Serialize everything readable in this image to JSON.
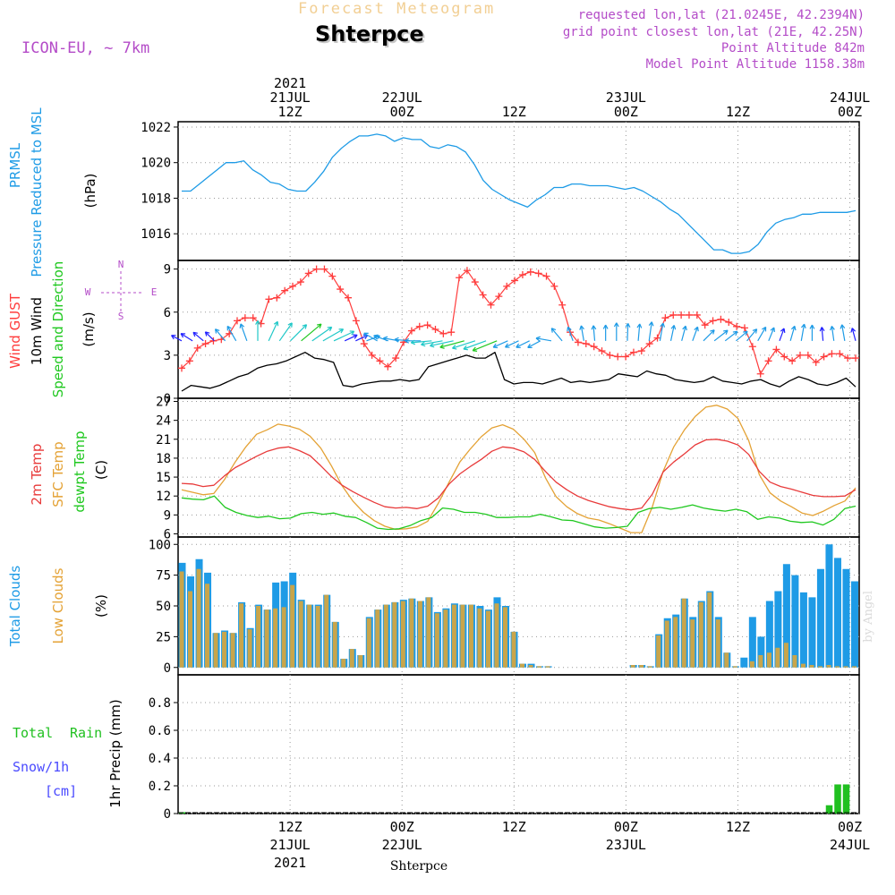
{
  "header": {
    "title": "Forecast Meteogram",
    "station": "Shterpce",
    "model": "ICON-EU, ~ 7km",
    "requested": "requested lon,lat (21.0245E, 42.2394N)",
    "grid_point": "grid point closest lon,lat (21E, 42.25N)",
    "point_altitude": "Point Altitude 842m",
    "model_altitude": "Model Point Altitude 1158.38m"
  },
  "credit": "by Angel",
  "colors": {
    "pressure": "#1e9be6",
    "gust": "#ff3c3c",
    "wind": "#000000",
    "temp2m": "#e83a3a",
    "sfc": "#e4a235",
    "dewpt": "#20c820",
    "total_cloud": "#1e9be6",
    "low_cloud": "#c8a54b",
    "rain": "#20c020",
    "snow": "#4a4aff",
    "label_pressure": "#1e9be6",
    "label_purple": "#b44cc8"
  },
  "time_axis": {
    "start_hour": 0,
    "end_hour": 73,
    "top_labels": [
      {
        "h": 12,
        "lines": [
          "2021",
          "21JUL",
          "12Z"
        ]
      },
      {
        "h": 24,
        "lines": [
          "22JUL",
          "00Z"
        ]
      },
      {
        "h": 36,
        "lines": [
          "12Z"
        ]
      },
      {
        "h": 48,
        "lines": [
          "23JUL",
          "00Z"
        ]
      },
      {
        "h": 60,
        "lines": [
          "12Z"
        ]
      },
      {
        "h": 72,
        "lines": [
          "24JUL",
          "00Z"
        ]
      }
    ],
    "bottom_labels": [
      {
        "h": 12,
        "lines": [
          "12Z",
          "21JUL",
          "2021"
        ]
      },
      {
        "h": 24,
        "lines": [
          "00Z",
          "22JUL"
        ]
      },
      {
        "h": 36,
        "lines": [
          "12Z"
        ]
      },
      {
        "h": 48,
        "lines": [
          "00Z",
          "23JUL"
        ]
      },
      {
        "h": 60,
        "lines": [
          "12Z"
        ]
      },
      {
        "h": 72,
        "lines": [
          "00Z",
          "24JUL"
        ]
      }
    ],
    "bottom_station": "Shterpce"
  },
  "chart_data": [
    {
      "type": "line",
      "panel": "pressure",
      "ylabel_lines": [
        "PRMSL",
        "Pressure Reduced to MSL"
      ],
      "unit": "(hPa)",
      "ylim": [
        1014.5,
        1022.3
      ],
      "yticks": [
        1016,
        1018,
        1020,
        1022
      ],
      "series": [
        {
          "name": "PRMSL",
          "values": [
            1018.4,
            1018.4,
            1018.8,
            1019.2,
            1019.6,
            1020.0,
            1020.0,
            1020.1,
            1019.6,
            1019.3,
            1018.9,
            1018.8,
            1018.5,
            1018.4,
            1018.4,
            1018.9,
            1019.5,
            1020.3,
            1020.8,
            1021.2,
            1021.5,
            1021.5,
            1021.6,
            1021.5,
            1021.2,
            1021.4,
            1021.3,
            1021.3,
            1020.9,
            1020.8,
            1021.0,
            1020.9,
            1020.6,
            1019.9,
            1019.0,
            1018.5,
            1018.2,
            1017.9,
            1017.7,
            1017.5,
            1017.9,
            1018.2,
            1018.6,
            1018.6,
            1018.8,
            1018.8,
            1018.7,
            1018.7,
            1018.7,
            1018.6,
            1018.5,
            1018.6,
            1018.4,
            1018.1,
            1017.8,
            1017.4,
            1017.1,
            1016.6,
            1016.1,
            1015.6,
            1015.1,
            1015.1,
            1014.9,
            1014.9,
            1015.0,
            1015.4,
            1016.1,
            1016.6,
            1016.8,
            1016.9,
            1017.1,
            1017.1,
            1017.2,
            1017.2,
            1017.2,
            1017.2,
            1017.3
          ]
        }
      ]
    },
    {
      "type": "line",
      "panel": "wind",
      "ylabel_lines": [
        "Wind GUST",
        "10m Wind",
        "Speed and Direction"
      ],
      "unit": "(m/s)",
      "ylim": [
        0,
        9.6
      ],
      "yticks": [
        0,
        3,
        6,
        9
      ],
      "compass": {
        "n": "N",
        "s": "S",
        "w": "W",
        "e": "E"
      },
      "series": [
        {
          "name": "Wind GUST",
          "values": [
            2.1,
            2.6,
            3.5,
            3.8,
            4.0,
            4.1,
            4.5,
            5.4,
            5.6,
            5.6,
            5.2,
            6.9,
            7.0,
            7.5,
            7.8,
            8.1,
            8.7,
            9.0,
            9.0,
            8.5,
            7.6,
            7.0,
            5.4,
            3.8,
            3.0,
            2.6,
            2.2,
            2.8,
            3.9,
            4.7,
            5.0,
            5.1,
            4.8,
            4.5,
            4.6,
            8.4,
            8.9,
            8.1,
            7.2,
            6.5,
            7.1,
            7.8,
            8.2,
            8.6,
            8.8,
            8.7,
            8.5,
            7.8,
            6.5,
            4.6,
            3.9,
            3.8,
            3.6,
            3.3,
            3.0,
            2.9,
            2.9,
            3.2,
            3.3,
            3.8,
            4.2,
            5.6,
            5.8,
            5.8,
            5.8,
            5.8,
            5.1,
            5.4,
            5.5,
            5.3,
            5.0,
            4.9,
            3.6,
            1.7,
            2.6,
            3.4,
            2.9,
            2.6,
            3.0,
            3.0,
            2.5,
            2.9,
            3.1,
            3.1,
            2.8,
            2.8
          ]
        },
        {
          "name": "10m Wind",
          "values": [
            0.5,
            0.9,
            0.8,
            0.7,
            0.9,
            1.2,
            1.5,
            1.7,
            2.1,
            2.3,
            2.4,
            2.6,
            2.9,
            3.2,
            2.8,
            2.7,
            2.5,
            0.9,
            0.8,
            1.0,
            1.1,
            1.2,
            1.2,
            1.3,
            1.2,
            1.3,
            2.2,
            2.4,
            2.6,
            2.8,
            3.0,
            2.8,
            2.8,
            3.2,
            1.3,
            1.0,
            1.1,
            1.1,
            1.0,
            1.2,
            1.4,
            1.1,
            1.2,
            1.1,
            1.2,
            1.3,
            1.7,
            1.6,
            1.5,
            1.9,
            1.7,
            1.6,
            1.3,
            1.2,
            1.1,
            1.2,
            1.5,
            1.2,
            1.1,
            1.0,
            1.2,
            1.3,
            1.0,
            0.8,
            1.2,
            1.5,
            1.3,
            1.0,
            0.9,
            1.1,
            1.4,
            0.8
          ]
        }
      ],
      "wind_dir_deg": [
        118,
        122,
        130,
        135,
        140,
        150,
        160,
        180,
        205,
        215,
        225,
        230,
        235,
        240,
        245,
        245,
        245,
        250,
        120,
        110,
        100,
        95,
        90,
        85,
        80,
        78,
        75,
        72,
        70,
        68,
        66,
        65,
        64,
        62,
        100,
        140,
        160,
        170,
        175,
        180,
        180,
        182,
        185,
        188,
        190,
        192,
        195,
        200,
        225,
        232,
        232,
        230,
        220,
        210,
        202,
        200,
        196,
        190,
        180,
        175,
        172,
        170,
        165
      ]
    },
    {
      "type": "line",
      "panel": "temperature",
      "ylabel_lines": [
        "2m Temp",
        "SFC Temp",
        "dewpt Temp"
      ],
      "unit": "(C)",
      "ylim": [
        5.5,
        27.5
      ],
      "yticks": [
        6,
        9,
        12,
        15,
        18,
        21,
        24,
        27
      ],
      "series": [
        {
          "name": "2m Temp",
          "values": [
            14.0,
            13.9,
            13.5,
            13.7,
            15.2,
            16.5,
            17.4,
            18.3,
            19.1,
            19.6,
            19.8,
            19.2,
            18.4,
            16.8,
            15.1,
            13.7,
            12.7,
            11.8,
            11.0,
            10.3,
            10.1,
            10.2,
            10.0,
            10.4,
            11.7,
            13.9,
            15.5,
            16.7,
            17.8,
            19.1,
            19.8,
            19.6,
            19.0,
            17.8,
            15.9,
            14.2,
            13.0,
            12.0,
            11.3,
            10.8,
            10.3,
            10.0,
            9.8,
            10.1,
            12.3,
            15.8,
            17.4,
            18.7,
            20.1,
            20.9,
            21.0,
            20.7,
            20.1,
            18.6,
            15.9,
            14.2,
            13.5,
            13.1,
            12.6,
            12.1,
            11.9,
            11.9,
            12.0,
            13.0
          ]
        },
        {
          "name": "SFC Temp",
          "values": [
            13.0,
            12.6,
            12.2,
            12.4,
            14.6,
            17.4,
            19.8,
            21.8,
            22.5,
            23.4,
            23.1,
            22.6,
            21.5,
            19.6,
            16.8,
            13.6,
            11.2,
            9.4,
            8.1,
            7.2,
            6.7,
            6.8,
            7.1,
            8.0,
            10.9,
            14.2,
            17.4,
            19.5,
            21.4,
            22.8,
            23.3,
            22.6,
            21.0,
            18.9,
            14.9,
            11.9,
            10.3,
            9.2,
            8.5,
            8.2,
            7.6,
            6.9,
            6.2,
            6.2,
            10.3,
            15.9,
            19.8,
            22.5,
            24.6,
            26.1,
            26.4,
            25.8,
            24.3,
            20.8,
            15.4,
            12.5,
            11.2,
            10.3,
            9.3,
            8.9,
            9.6,
            10.5,
            11.2,
            13.3
          ]
        },
        {
          "name": "dewpt Temp",
          "values": [
            11.7,
            11.5,
            11.4,
            12.0,
            10.2,
            9.4,
            8.9,
            8.6,
            8.8,
            8.4,
            8.5,
            9.2,
            9.4,
            9.1,
            9.3,
            8.8,
            8.6,
            7.8,
            6.9,
            6.7,
            6.8,
            7.3,
            8.1,
            8.6,
            10.1,
            9.9,
            9.4,
            9.4,
            9.1,
            8.6,
            8.6,
            8.7,
            8.7,
            9.1,
            8.7,
            8.2,
            8.1,
            7.6,
            7.1,
            6.9,
            7.0,
            7.2,
            9.4,
            10.0,
            10.2,
            9.9,
            10.2,
            10.6,
            10.1,
            9.8,
            9.6,
            9.9,
            9.5,
            8.3,
            8.7,
            8.5,
            8.0,
            7.8,
            7.9,
            7.4,
            8.3,
            10.0,
            10.4
          ]
        }
      ]
    },
    {
      "type": "bar",
      "panel": "clouds",
      "ylabel_lines": [
        "Total Clouds",
        "Low Clouds"
      ],
      "unit": "(%)",
      "ylim": [
        -6,
        106
      ],
      "yticks": [
        0,
        25,
        50,
        75,
        100
      ],
      "series": [
        {
          "name": "Total Clouds",
          "values": [
            85,
            74,
            88,
            77,
            28,
            30,
            28,
            53,
            32,
            51,
            47,
            69,
            70,
            77,
            55,
            51,
            51,
            59,
            37,
            7,
            15,
            10,
            41,
            47,
            51,
            53,
            55,
            56,
            54,
            57,
            45,
            48,
            52,
            51,
            51,
            50,
            47,
            57,
            50,
            29,
            3,
            3,
            1,
            1,
            0,
            0,
            0,
            0,
            0,
            0,
            0,
            0,
            0,
            2,
            2,
            1,
            27,
            40,
            43,
            56,
            41,
            54,
            62,
            41,
            12,
            1,
            8,
            41,
            25,
            54,
            62,
            84,
            75,
            61,
            57,
            80,
            100,
            89,
            80,
            70
          ]
        },
        {
          "name": "Low Clouds",
          "values": [
            78,
            62,
            80,
            68,
            28,
            29,
            28,
            52,
            31,
            50,
            47,
            48,
            49,
            67,
            54,
            51,
            50,
            59,
            37,
            7,
            15,
            10,
            40,
            47,
            51,
            53,
            54,
            56,
            54,
            57,
            44,
            47,
            51,
            51,
            51,
            48,
            46,
            52,
            49,
            29,
            3,
            2,
            1,
            1,
            0,
            0,
            0,
            0,
            0,
            0,
            0,
            0,
            0,
            2,
            2,
            1,
            26,
            38,
            41,
            56,
            39,
            53,
            61,
            39,
            12,
            1,
            0,
            5,
            10,
            12,
            16,
            20,
            10,
            3,
            2,
            1,
            2,
            1,
            1,
            1
          ]
        }
      ]
    },
    {
      "type": "bar",
      "panel": "precip",
      "ylabel_lines": [
        "1hr Precip (mm)"
      ],
      "legend": {
        "total": "Total",
        "rain": "Rain",
        "snow": "Snow/1h",
        "cm": "[cm]"
      },
      "ylim": [
        0,
        1.0
      ],
      "yticks": [
        0,
        0.2,
        0.4,
        0.6,
        0.8
      ],
      "series": [
        {
          "name": "Rain",
          "values": [
            0.01,
            0,
            0,
            0,
            0,
            0,
            0,
            0,
            0,
            0,
            0,
            0,
            0,
            0,
            0,
            0,
            0,
            0,
            0,
            0,
            0,
            0,
            0,
            0,
            0,
            0,
            0,
            0,
            0,
            0,
            0,
            0,
            0,
            0,
            0,
            0,
            0,
            0,
            0,
            0,
            0,
            0,
            0,
            0,
            0,
            0,
            0,
            0,
            0,
            0,
            0,
            0,
            0,
            0,
            0,
            0,
            0,
            0,
            0,
            0,
            0,
            0,
            0,
            0,
            0,
            0,
            0,
            0,
            0,
            0,
            0,
            0,
            0,
            0,
            0,
            0,
            0.06,
            0.21,
            0.21,
            0
          ]
        }
      ]
    }
  ]
}
